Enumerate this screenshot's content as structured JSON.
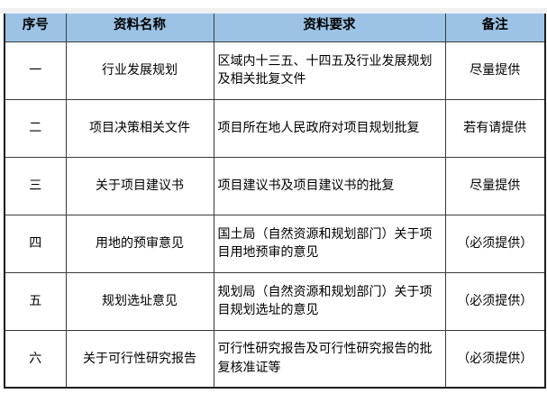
{
  "page": {
    "background_color": "#ffffff",
    "top_strip_color": "#f0f0f0"
  },
  "table": {
    "header_bg_color": "#9cc3e5",
    "border_color": "#1d1d1d",
    "headers": [
      "序号",
      "资料名称",
      "资料要求",
      "备注"
    ],
    "rows": [
      {
        "no": "一",
        "name": "行业发展规划",
        "requirement": "区域内十三五、十四五及行业发展规划及相关批复文件",
        "note": "尽量提供"
      },
      {
        "no": "二",
        "name": "项目决策相关文件",
        "requirement": "项目所在地人民政府对项目规划批复",
        "note": "若有请提供"
      },
      {
        "no": "三",
        "name": "关于项目建议书",
        "requirement": "项目建议书及项目建议书的批复",
        "note": "尽量提供"
      },
      {
        "no": "四",
        "name": "用地的预审意见",
        "requirement": "国土局（自然资源和规划部门）关于项目用地预审的意见",
        "note": "（必须提供）"
      },
      {
        "no": "五",
        "name": "规划选址意见",
        "requirement": "规划局（自然资源和规划部门）关于项目规划选址的意见",
        "note": "（必须提供）"
      },
      {
        "no": "六",
        "name": "关于可行性研究报告",
        "requirement": "可行性研究报告及可行性研究报告的批复核准证等",
        "note": "（必须提供）"
      }
    ]
  }
}
